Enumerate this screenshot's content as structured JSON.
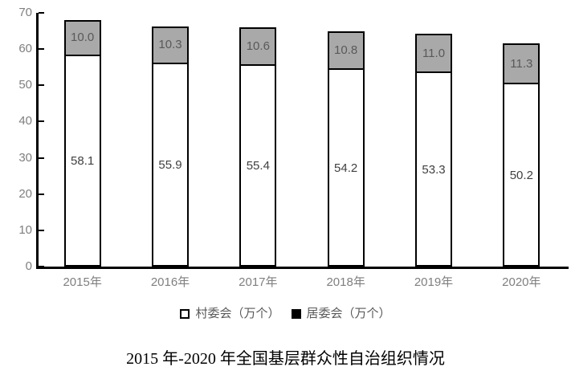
{
  "title": "2015 年-2020 年全国基层群众性自治组织情况",
  "legend": {
    "items": [
      {
        "label": "村委会（万个）",
        "swatch_fill": "#ffffff",
        "swatch_border": "#000000"
      },
      {
        "label": "居委会（万个）",
        "swatch_fill": "#000000",
        "swatch_border": "#000000"
      }
    ]
  },
  "chart_data": {
    "type": "bar",
    "stacked": true,
    "title": "2015 年-2020 年全国基层群众性自治组织情况",
    "categories": [
      "2015年",
      "2016年",
      "2017年",
      "2018年",
      "2019年",
      "2020年"
    ],
    "series": [
      {
        "name": "村委会（万个）",
        "values": [
          58.1,
          55.9,
          55.4,
          54.2,
          53.3,
          50.2
        ],
        "labels": [
          "58.1",
          "55.9",
          "55.4",
          "54.2",
          "53.3",
          "50.2"
        ],
        "fill": "#ffffff",
        "label_color": "#404040"
      },
      {
        "name": "居委会（万个）",
        "values": [
          10.0,
          10.3,
          10.6,
          10.8,
          11.0,
          11.3
        ],
        "labels": [
          "10.0",
          "10.3",
          "10.6",
          "10.8",
          "11.0",
          "11.3"
        ],
        "fill": "#a9a9a9",
        "label_color": "#595959"
      }
    ],
    "ylim": [
      0,
      70
    ],
    "yticks": [
      0,
      10,
      20,
      30,
      40,
      50,
      60,
      70
    ],
    "grid": false,
    "legend_position": "bottom",
    "bar_border_color": "#000000",
    "axis_color": "#000000",
    "tick_label_color": "#7f7f7f"
  }
}
